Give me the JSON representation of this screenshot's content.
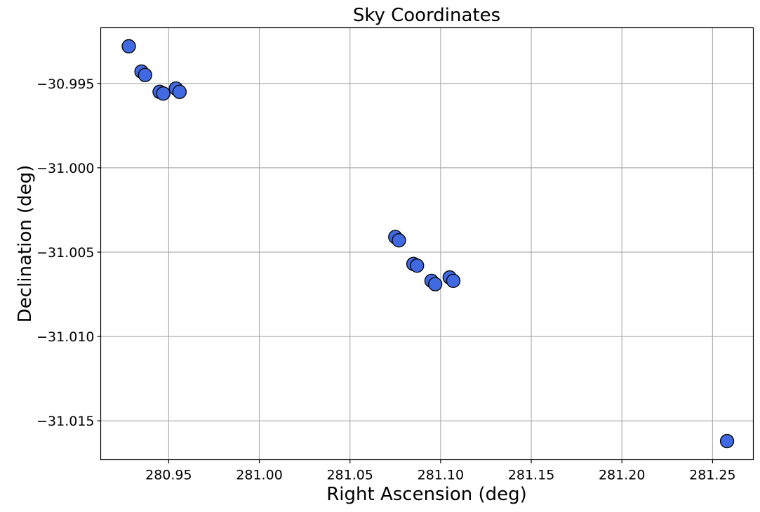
{
  "chart_data": {
    "type": "scatter",
    "title": "Sky Coordinates",
    "xlabel": "Right Ascension (deg)",
    "ylabel": "Declination (deg)",
    "xlim": [
      280.9125,
      281.2725
    ],
    "ylim": [
      -31.0173,
      -30.9917
    ],
    "x_ticks": [
      280.95,
      281.0,
      281.05,
      281.1,
      281.15,
      281.2,
      281.25
    ],
    "x_tick_labels": [
      "280.95",
      "281.00",
      "281.05",
      "281.10",
      "281.15",
      "281.20",
      "281.25"
    ],
    "y_ticks": [
      -30.995,
      -31.0,
      -31.005,
      -31.01,
      -31.015
    ],
    "y_tick_labels": [
      "−30.995",
      "−31.000",
      "−31.005",
      "−31.010",
      "−31.015"
    ],
    "grid": true,
    "marker_color": "#4169e1",
    "marker_edge_color": "#000000",
    "points": [
      {
        "x": 280.928,
        "y": -30.9928
      },
      {
        "x": 280.935,
        "y": -30.9943
      },
      {
        "x": 280.937,
        "y": -30.9945
      },
      {
        "x": 280.945,
        "y": -30.9955
      },
      {
        "x": 280.947,
        "y": -30.9956
      },
      {
        "x": 280.954,
        "y": -30.9953
      },
      {
        "x": 280.956,
        "y": -30.9955
      },
      {
        "x": 281.075,
        "y": -31.0041
      },
      {
        "x": 281.077,
        "y": -31.0043
      },
      {
        "x": 281.085,
        "y": -31.0057
      },
      {
        "x": 281.087,
        "y": -31.0058
      },
      {
        "x": 281.095,
        "y": -31.0067
      },
      {
        "x": 281.097,
        "y": -31.0069
      },
      {
        "x": 281.105,
        "y": -31.0065
      },
      {
        "x": 281.107,
        "y": -31.0067
      },
      {
        "x": 281.258,
        "y": -31.0162
      }
    ]
  }
}
